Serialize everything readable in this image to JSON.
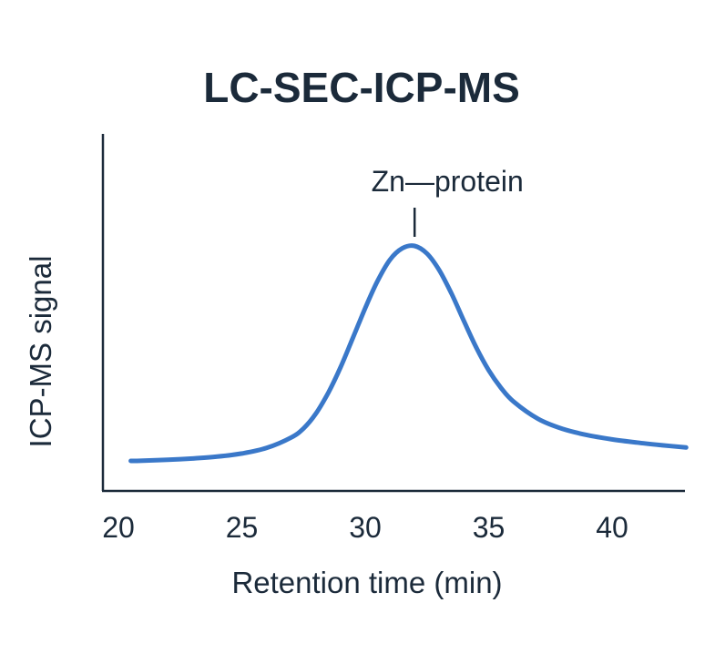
{
  "chart_data": {
    "type": "line",
    "title": "LC-SEC-ICP-MS",
    "xlabel": "Retention time (min)",
    "ylabel": "ICP-MS signal",
    "xlim": [
      20,
      43
    ],
    "ylim": [
      0,
      100
    ],
    "xticks": [
      20,
      25,
      30,
      35,
      40
    ],
    "yticks": [],
    "grid": false,
    "legend": "none",
    "series": [
      {
        "color": "#3a78c9",
        "x": [
          20.5,
          21,
          22,
          23,
          24,
          25,
          26,
          27,
          27.5,
          28,
          28.5,
          29,
          29.5,
          30,
          30.5,
          31,
          31.5,
          32,
          32.5,
          33,
          33.5,
          34,
          34.5,
          35,
          35.5,
          36,
          37,
          38,
          39,
          40,
          41,
          42,
          43
        ],
        "y": [
          1.0,
          1.1,
          1.5,
          2.0,
          2.8,
          4.1,
          6.4,
          10.8,
          14.6,
          20.8,
          29.5,
          40.2,
          52.5,
          65.0,
          76.4,
          85.2,
          90.0,
          91.0,
          87.8,
          80.8,
          70.9,
          59.5,
          48.4,
          39.0,
          31.6,
          25.9,
          18.6,
          14.4,
          11.8,
          10.0,
          8.7,
          7.6,
          6.6
        ]
      }
    ],
    "annotations": [
      {
        "text": "Zn—protein",
        "x": 32,
        "y": 91
      }
    ]
  }
}
